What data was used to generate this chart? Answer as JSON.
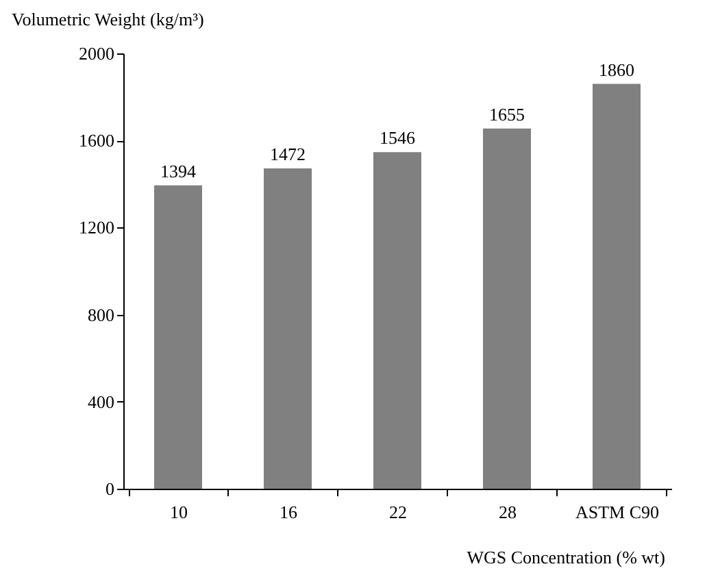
{
  "chart_data": {
    "type": "bar",
    "ylabel": "Volumetric Weight (kg/m³)",
    "xlabel": "WGS Concentration (% wt)",
    "categories": [
      "10",
      "16",
      "22",
      "28",
      "ASTM C90"
    ],
    "values": [
      1394,
      1472,
      1546,
      1655,
      1860
    ],
    "color": "#808080",
    "ylim": [
      0,
      2000
    ],
    "yticks": [
      0,
      400,
      800,
      1200,
      1600,
      2000
    ],
    "grid": false,
    "data_labels": true
  }
}
